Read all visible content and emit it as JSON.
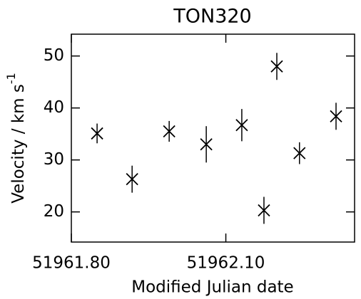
{
  "chart_data": {
    "type": "scatter",
    "title": "TON320",
    "x_label": "Modified Julian date",
    "y_label": "Velocity / km s",
    "y_label_superscript": "-1",
    "x": [
      51961.85,
      51961.918,
      51961.99,
      51962.062,
      51962.131,
      51962.174,
      51962.199,
      51962.243,
      51962.314
    ],
    "values": [
      35.1,
      26.3,
      35.5,
      33.0,
      36.7,
      20.3,
      48.0,
      31.3,
      38.4
    ],
    "errors": [
      1.9,
      2.6,
      2.0,
      3.5,
      3.1,
      2.6,
      2.6,
      2.1,
      2.6
    ],
    "color": "#000000",
    "xlim": [
      51961.8,
      51962.35
    ],
    "xticks": [
      {
        "value": 51961.8,
        "label": "51961.80"
      },
      {
        "value": 51962.1,
        "label": "51962.10"
      }
    ],
    "ylim": [
      14.2,
      54.2
    ],
    "yticks": [
      20,
      30,
      40,
      50
    ]
  }
}
